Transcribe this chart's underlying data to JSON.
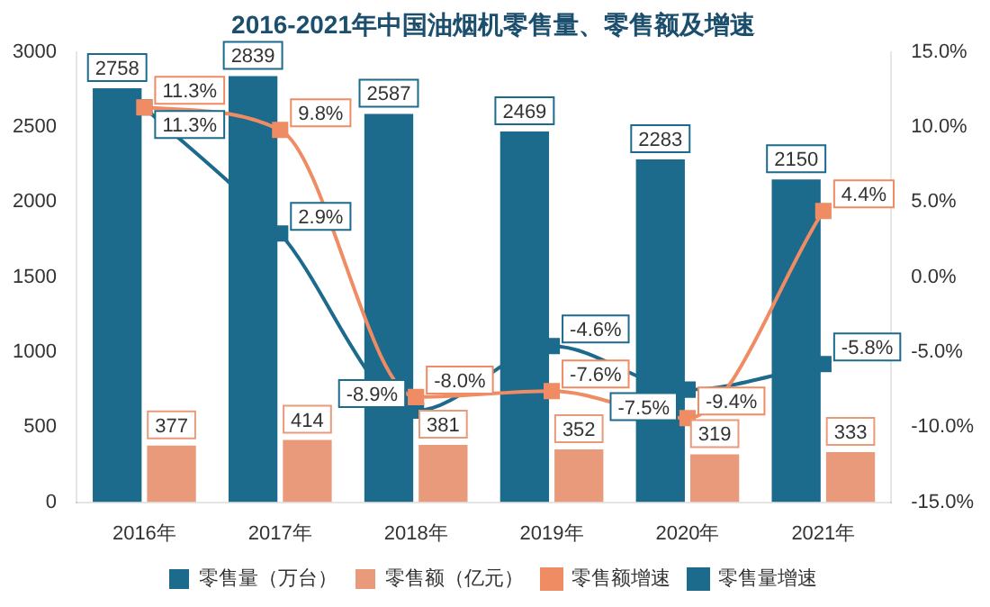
{
  "chart_data": {
    "type": "bar",
    "title": "2016-2021年中国油烟机零售量、零售额及增速",
    "categories": [
      "2016年",
      "2017年",
      "2018年",
      "2019年",
      "2020年",
      "2021年"
    ],
    "series": [
      {
        "name": "零售量（万台）",
        "color": "#1c6a8c",
        "values": [
          2758,
          2839,
          2587,
          2469,
          2283,
          2150
        ],
        "value_labels": [
          "2758",
          "2839",
          "2587",
          "2469",
          "2283",
          "2150"
        ]
      },
      {
        "name": "零售额（亿元）",
        "color": "#e99a7a",
        "values": [
          377,
          414,
          381,
          352,
          319,
          333
        ],
        "value_labels": [
          "377",
          "414",
          "381",
          "352",
          "319",
          "333"
        ]
      },
      {
        "name": "零售额增速",
        "type": "line",
        "axis": "y2",
        "color": "#ef8c64",
        "values": [
          11.3,
          9.8,
          -8.0,
          -7.6,
          -9.4,
          4.4
        ],
        "value_labels": [
          "11.3%",
          "9.8%",
          "-8.0%",
          "-7.6%",
          "-9.4%",
          "4.4%"
        ]
      },
      {
        "name": "零售量增速",
        "type": "line",
        "axis": "y2",
        "color": "#1c6a8c",
        "values": [
          11.3,
          2.9,
          -8.9,
          -4.6,
          -7.5,
          -5.8
        ],
        "value_labels": [
          "11.3%",
          "2.9%",
          "-8.9%",
          "-4.6%",
          "-7.5%",
          "-5.8%"
        ]
      }
    ],
    "ylim": [
      0,
      3000
    ],
    "yticks": [
      0,
      500,
      1000,
      1500,
      2000,
      2500,
      3000
    ],
    "y2lim": [
      -15,
      15
    ],
    "y2ticks": [
      {
        "value": -15,
        "label": "-15.0%"
      },
      {
        "value": -10,
        "label": "-10.0%"
      },
      {
        "value": -5,
        "label": "-5.0%"
      },
      {
        "value": 0,
        "label": "0.0%"
      },
      {
        "value": 5,
        "label": "5.0%"
      },
      {
        "value": 10,
        "label": "10.0%"
      },
      {
        "value": 15,
        "label": "15.0%"
      }
    ],
    "marker": "square",
    "grid": false,
    "legend": "bottom"
  }
}
